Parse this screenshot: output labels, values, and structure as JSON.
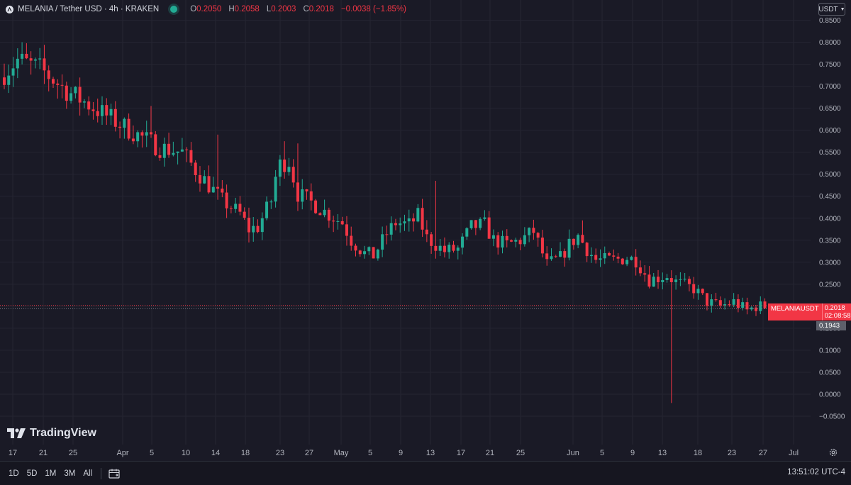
{
  "header": {
    "symbol": "MELANIA / Tether USD · 4h · KRAKEN",
    "ohlc": {
      "o_label": "O",
      "o": "0.2050",
      "h_label": "H",
      "h": "0.2058",
      "l_label": "L",
      "l": "0.2003",
      "c_label": "C",
      "c": "0.2018",
      "change": "−0.0038 (−1.85%)"
    }
  },
  "currency": "USDT",
  "branding": "TradingView",
  "price_tags": {
    "symbol": "MELANIAUSDT",
    "last_price": "0.2018",
    "countdown": "02:08:58",
    "ref_price": "0.1943"
  },
  "bottom_bar": {
    "ranges": [
      "1D",
      "5D",
      "1M",
      "3M",
      "All"
    ],
    "clock": "13:51:02 UTC-4"
  },
  "colors": {
    "up": "#22ab94",
    "down": "#f23645",
    "background": "#1a1a26",
    "grid": "#252532"
  },
  "chart_data": {
    "type": "candlestick",
    "symbol": "MELANIAUSDT",
    "interval": "4h",
    "y_ticks": [
      "0.8500",
      "0.8000",
      "0.7500",
      "0.7000",
      "0.6500",
      "0.6000",
      "0.5500",
      "0.5000",
      "0.4500",
      "0.4000",
      "0.3500",
      "0.3000",
      "0.2500",
      "0.2000",
      "0.1500",
      "0.1000",
      "0.0500",
      "0.0000",
      "−0.0500"
    ],
    "y_tick_values": [
      0.85,
      0.8,
      0.75,
      0.7,
      0.65,
      0.6,
      0.55,
      0.5,
      0.45,
      0.4,
      0.35,
      0.3,
      0.25,
      0.2,
      0.15,
      0.1,
      0.05,
      0.0,
      -0.05
    ],
    "ylim": [
      -0.05,
      0.85
    ],
    "x_ticks": [
      "17",
      "21",
      "25",
      "Apr",
      "5",
      "10",
      "14",
      "18",
      "23",
      "27",
      "May",
      "5",
      "9",
      "13",
      "17",
      "21",
      "25",
      "Jun",
      "5",
      "9",
      "13",
      "18",
      "23",
      "27",
      "Jul"
    ],
    "price_path": [
      {
        "x": 0,
        "y": 0.72
      },
      {
        "x": 4,
        "y": 0.76
      },
      {
        "x": 9,
        "y": 0.74
      },
      {
        "x": 15,
        "y": 0.69
      },
      {
        "x": 26,
        "y": 0.62
      },
      {
        "x": 30,
        "y": 0.595
      },
      {
        "x": 36,
        "y": 0.56
      },
      {
        "x": 41,
        "y": 0.55
      },
      {
        "x": 44,
        "y": 0.51
      },
      {
        "x": 50,
        "y": 0.44
      },
      {
        "x": 54,
        "y": 0.41
      },
      {
        "x": 56,
        "y": 0.375
      },
      {
        "x": 58,
        "y": 0.38
      },
      {
        "x": 61,
        "y": 0.44
      },
      {
        "x": 62.5,
        "y": 0.52
      },
      {
        "x": 65,
        "y": 0.53
      },
      {
        "x": 67,
        "y": 0.455
      },
      {
        "x": 71,
        "y": 0.43
      },
      {
        "x": 73,
        "y": 0.415
      },
      {
        "x": 77,
        "y": 0.39
      },
      {
        "x": 79,
        "y": 0.35
      },
      {
        "x": 82,
        "y": 0.32
      },
      {
        "x": 84,
        "y": 0.315
      },
      {
        "x": 87,
        "y": 0.365
      },
      {
        "x": 89,
        "y": 0.39
      },
      {
        "x": 92,
        "y": 0.385
      },
      {
        "x": 94,
        "y": 0.405
      },
      {
        "x": 96,
        "y": 0.355
      },
      {
        "x": 100,
        "y": 0.325
      },
      {
        "x": 103,
        "y": 0.33
      },
      {
        "x": 106,
        "y": 0.38
      },
      {
        "x": 109,
        "y": 0.385
      },
      {
        "x": 111,
        "y": 0.35
      },
      {
        "x": 114,
        "y": 0.34
      },
      {
        "x": 117,
        "y": 0.35
      },
      {
        "x": 120,
        "y": 0.37
      },
      {
        "x": 122,
        "y": 0.32
      },
      {
        "x": 123,
        "y": 0.295
      },
      {
        "x": 126,
        "y": 0.31
      },
      {
        "x": 128,
        "y": 0.34
      },
      {
        "x": 130,
        "y": 0.36
      },
      {
        "x": 132,
        "y": 0.33
      },
      {
        "x": 134,
        "y": 0.305
      },
      {
        "x": 138,
        "y": 0.305
      },
      {
        "x": 141,
        "y": 0.31
      },
      {
        "x": 143,
        "y": 0.305
      },
      {
        "x": 146,
        "y": 0.26
      },
      {
        "x": 150,
        "y": 0.27
      },
      {
        "x": 152,
        "y": 0.255
      },
      {
        "x": 156,
        "y": 0.24
      },
      {
        "x": 159,
        "y": 0.21
      },
      {
        "x": 162,
        "y": 0.2
      },
      {
        "x": 165,
        "y": 0.21
      },
      {
        "x": 168,
        "y": 0.19
      },
      {
        "x": 170,
        "y": 0.2
      },
      {
        "x": 172,
        "y": 0.2
      }
    ],
    "candle_count": 172,
    "xlim": [
      0,
      180
    ],
    "spikes": [
      {
        "x": 4,
        "high": 0.8
      },
      {
        "x": 33,
        "high": 0.655
      },
      {
        "x": 48,
        "high": 0.59
      },
      {
        "x": 62.5,
        "high": 0.575
      },
      {
        "x": 66,
        "high": 0.57
      },
      {
        "x": 97,
        "high": 0.485
      },
      {
        "x": 130,
        "high": 0.395
      },
      {
        "x": 150,
        "low": -0.02
      }
    ],
    "last_price": 0.2018,
    "ref_price": 0.1943,
    "grid": true
  }
}
